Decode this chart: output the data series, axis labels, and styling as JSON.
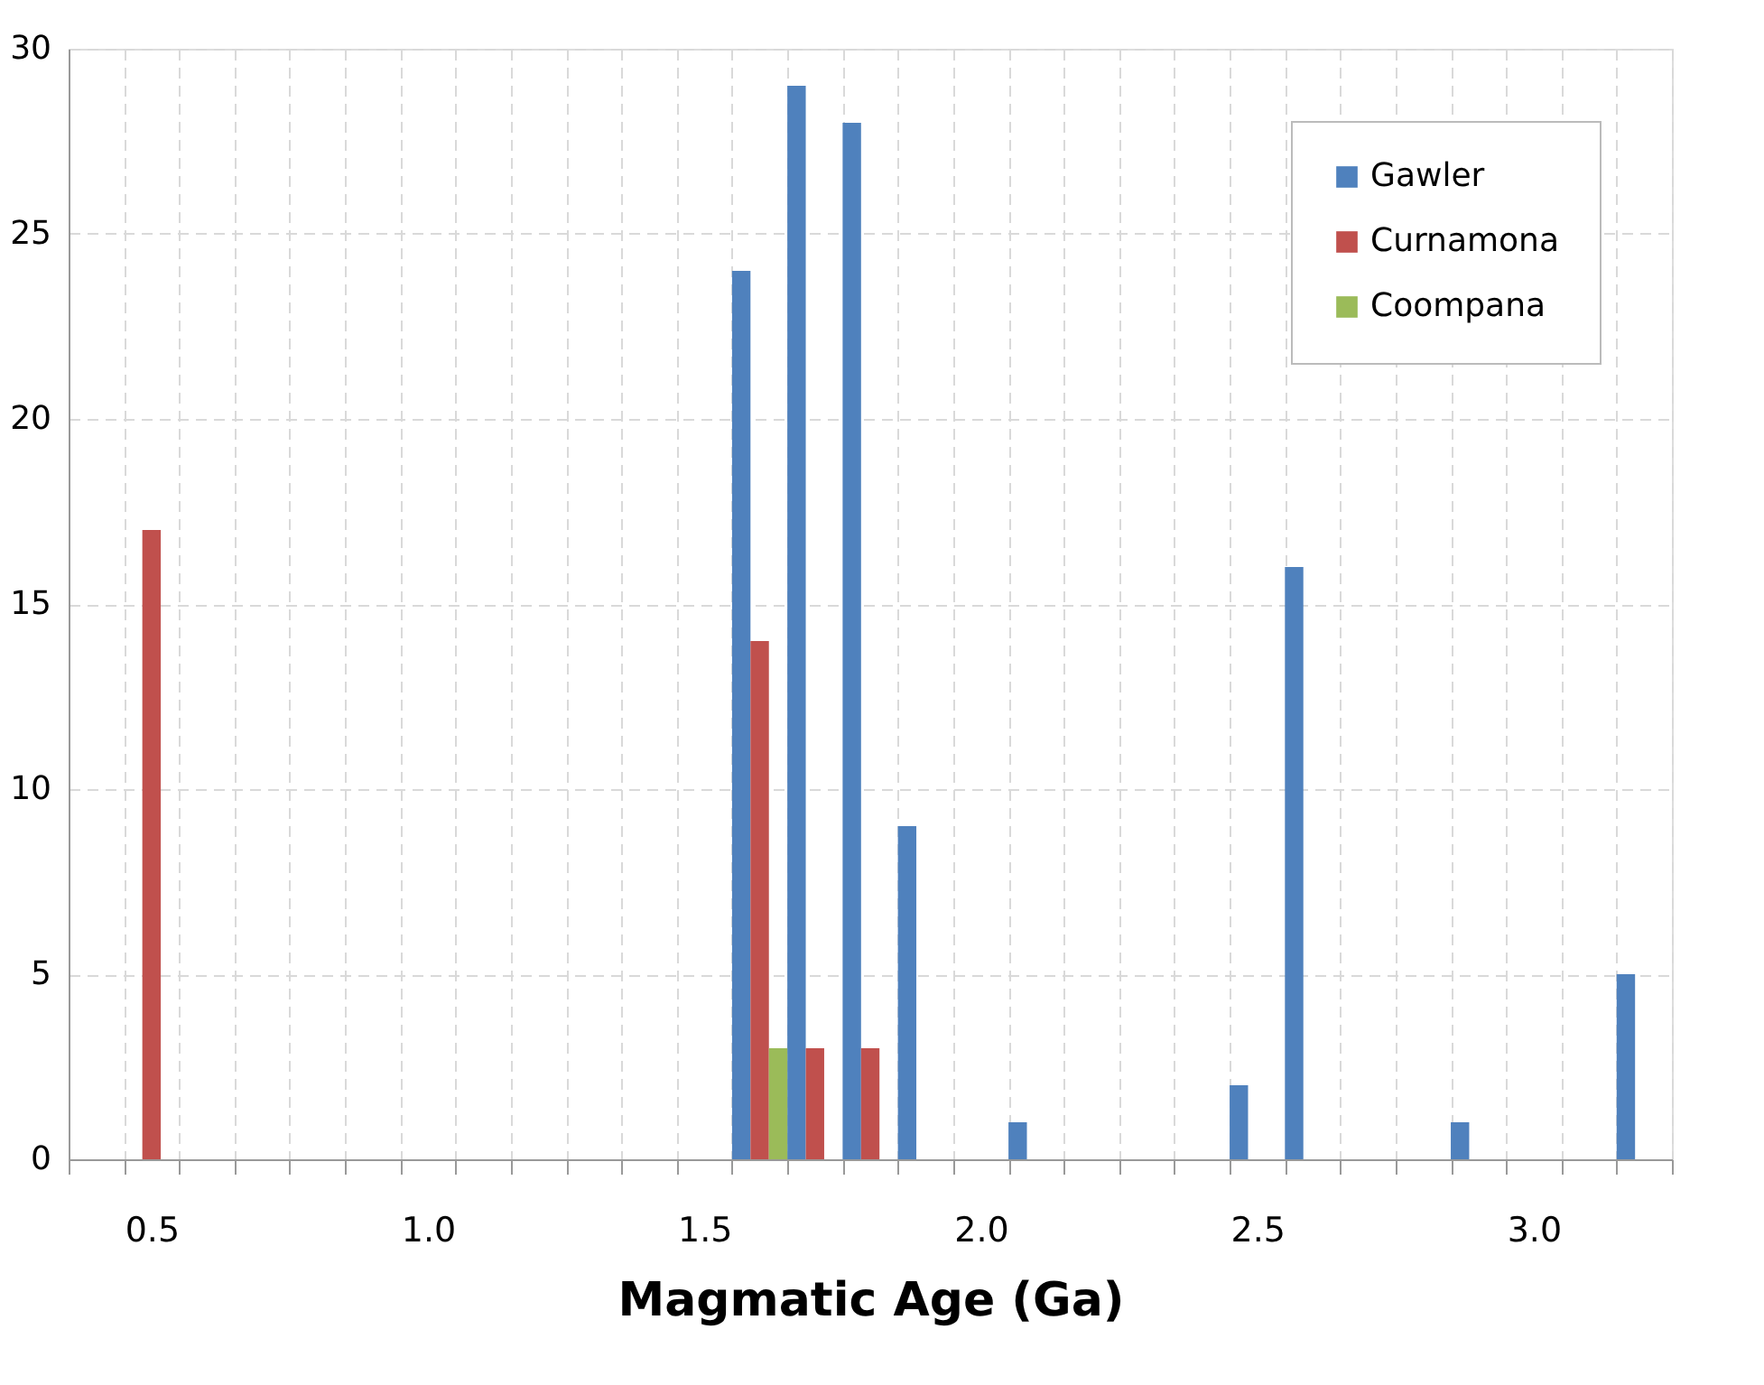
{
  "chart_data": {
    "type": "bar",
    "xlabel": "Magmatic Age (Ga)",
    "categories": [
      null,
      "0.5",
      null,
      null,
      null,
      null,
      "1.0",
      null,
      null,
      null,
      null,
      "1.5",
      null,
      null,
      null,
      null,
      "2.0",
      null,
      null,
      null,
      null,
      "2.5",
      null,
      null,
      null,
      null,
      "3.0",
      null,
      null
    ],
    "series": [
      {
        "name": "Gawler",
        "color": "#4f81bd",
        "values": [
          null,
          null,
          null,
          null,
          null,
          null,
          null,
          null,
          null,
          null,
          null,
          null,
          24,
          29,
          28,
          9,
          null,
          1,
          null,
          null,
          null,
          2,
          16,
          null,
          null,
          1,
          null,
          null,
          5
        ]
      },
      {
        "name": "Curnamona",
        "color": "#c0504d",
        "values": [
          null,
          17,
          null,
          null,
          null,
          null,
          null,
          null,
          null,
          null,
          null,
          null,
          14,
          3,
          3,
          null,
          null,
          null,
          null,
          null,
          null,
          null,
          null,
          null,
          null,
          null,
          null,
          null,
          null
        ]
      },
      {
        "name": "Coompana",
        "color": "#9bbb59",
        "values": [
          null,
          null,
          null,
          null,
          null,
          null,
          null,
          null,
          null,
          null,
          null,
          null,
          3,
          null,
          null,
          null,
          null,
          null,
          null,
          null,
          null,
          null,
          null,
          null,
          null,
          null,
          null,
          null,
          null
        ]
      }
    ],
    "ylim": [
      0,
      30
    ],
    "yticks": [
      0,
      5,
      10,
      15,
      20,
      25,
      30
    ],
    "grid": true,
    "legend": "top right"
  }
}
